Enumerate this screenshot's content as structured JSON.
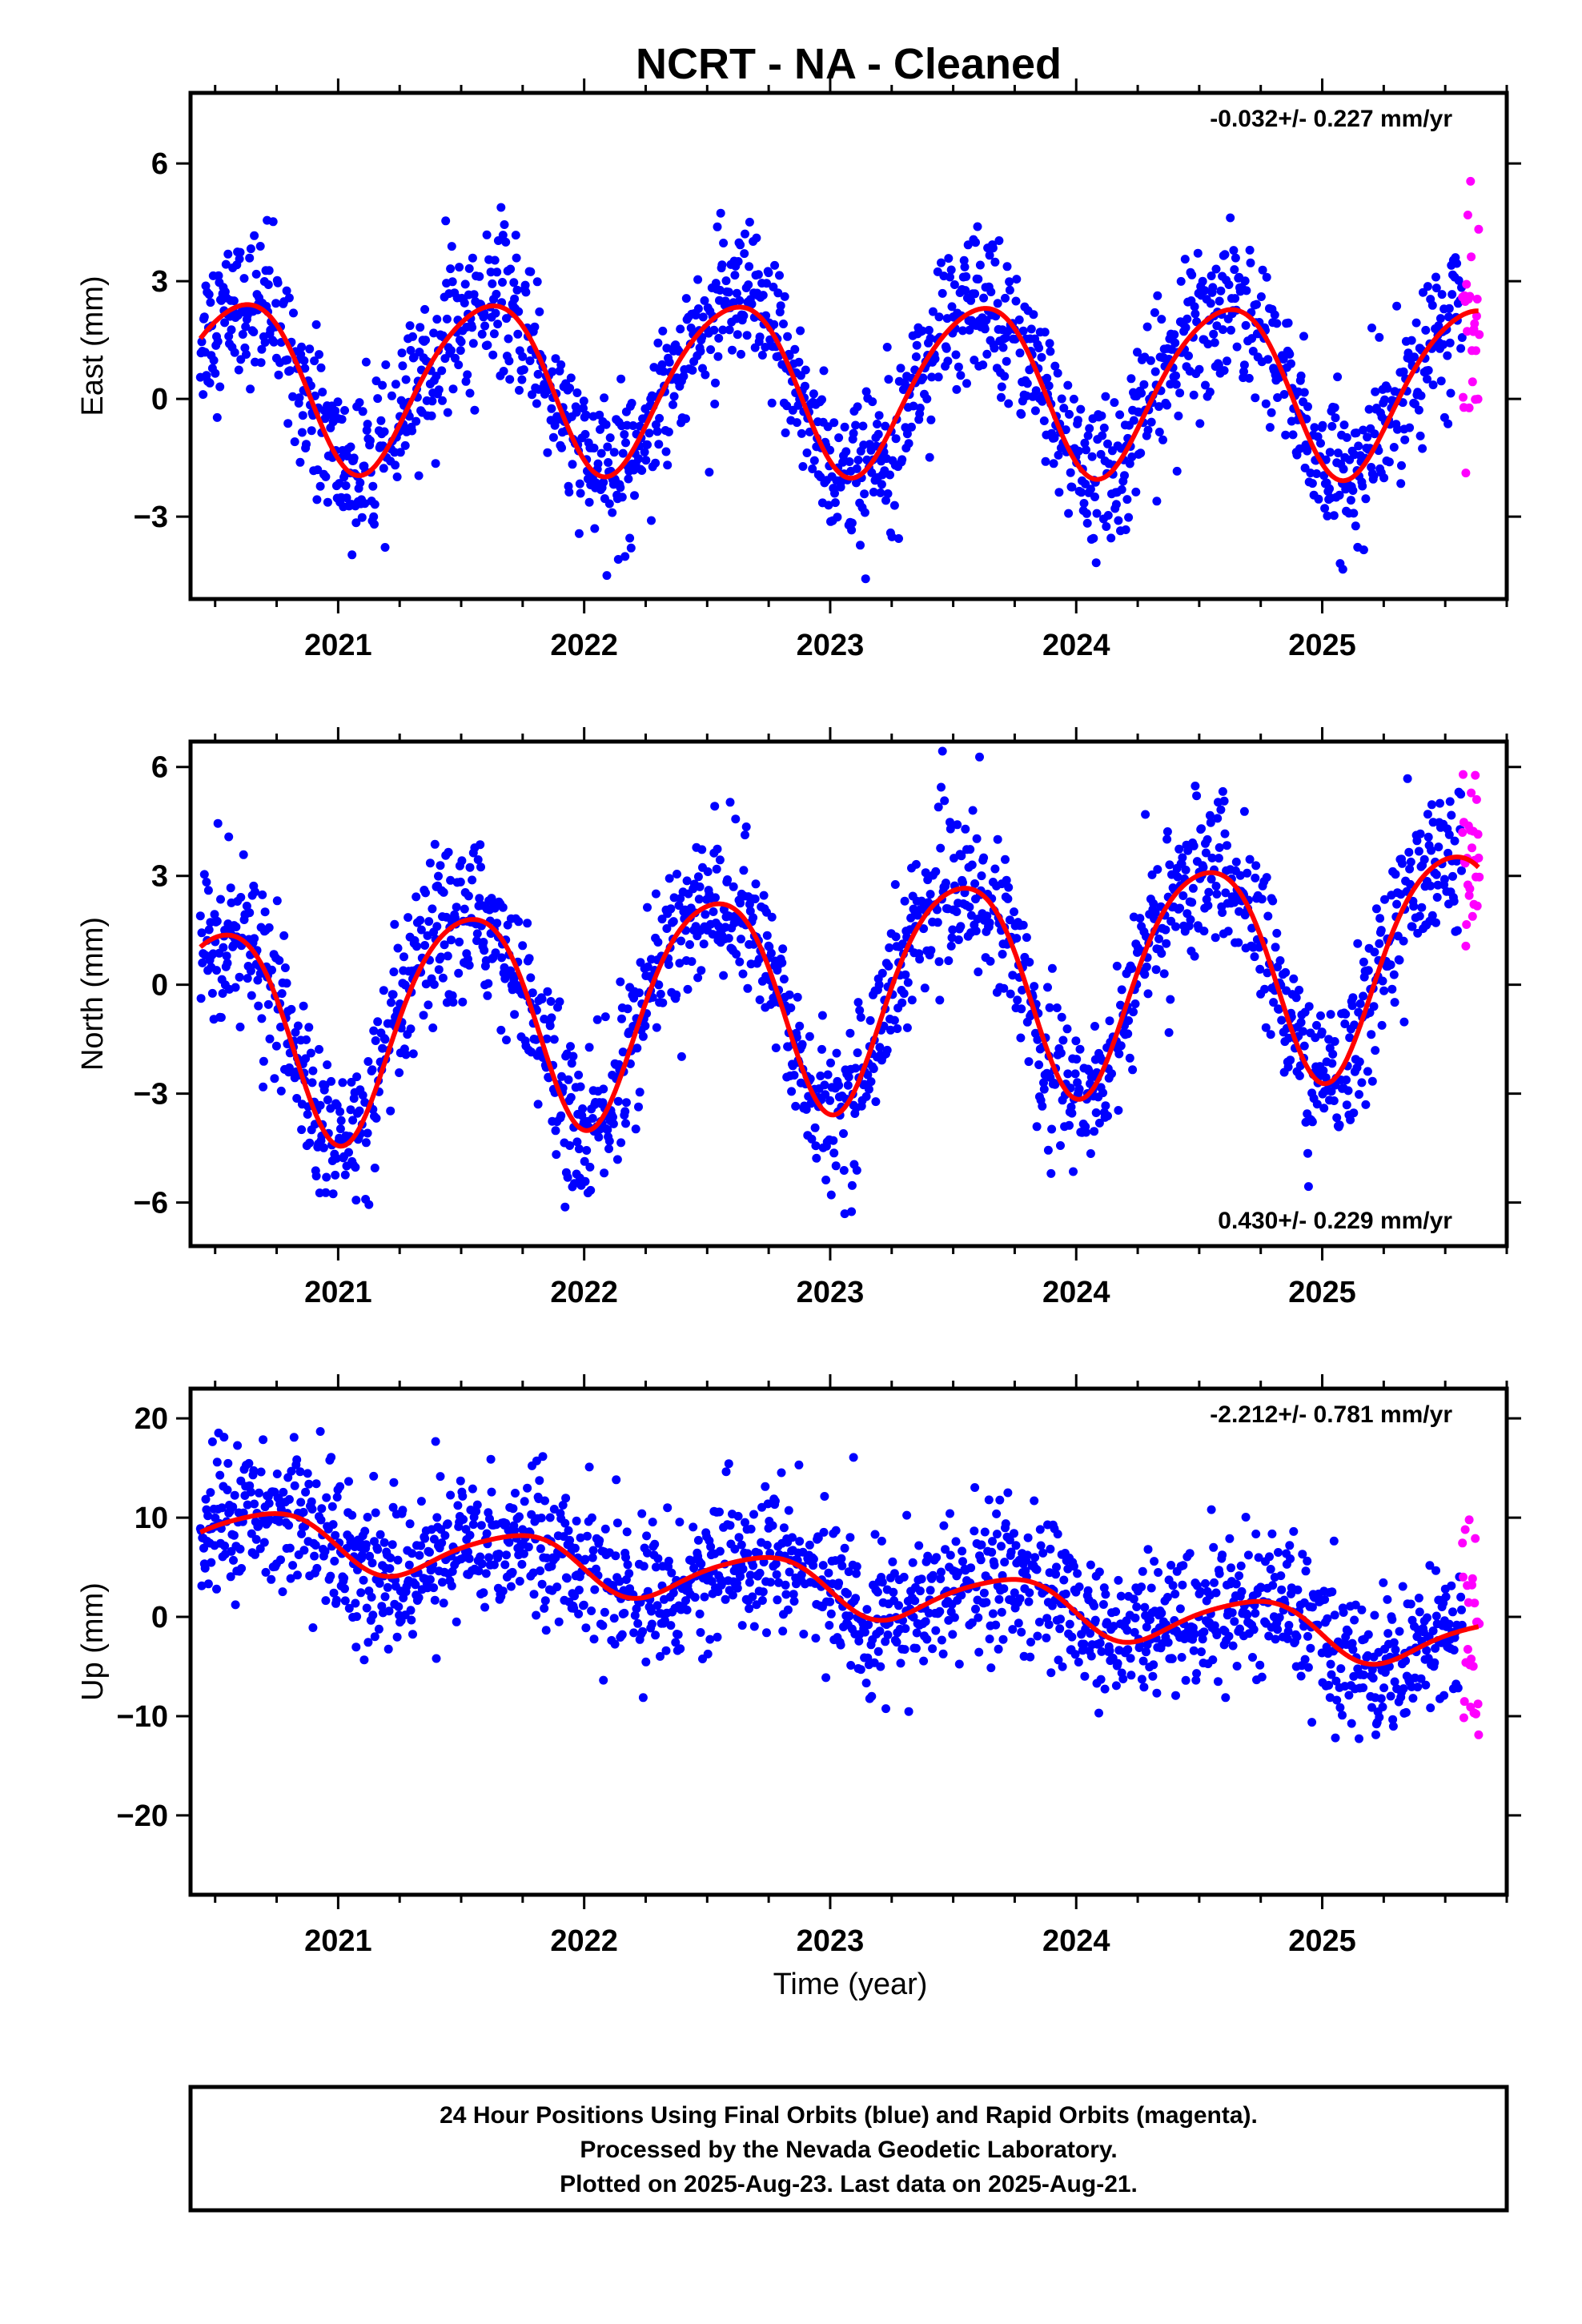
{
  "title": "NCRT  - NA - Cleaned",
  "xlabel": "Time (year)",
  "footer": [
    "24 Hour Positions Using Final Orbits (blue) and Rapid Orbits (magenta).",
    "Processed by the Nevada Geodetic Laboratory.",
    "Plotted on 2025-Aug-23. Last data on 2025-Aug-21."
  ],
  "colors": {
    "final": "#0000ff",
    "rapid": "#ff00ff",
    "model": "#ff0000"
  },
  "chart_data": [
    {
      "type": "scatter",
      "component": "east",
      "ylabel": "East (mm)",
      "rate_text": "-0.032+/- 0.227 mm/yr",
      "rate_position": "top-right",
      "xlim": [
        2020.4,
        2025.75
      ],
      "ylim": [
        -5.1,
        7.8
      ],
      "yticks": [
        -3,
        0,
        3,
        6
      ],
      "xticks": [
        2021,
        2022,
        2023,
        2024,
        2025
      ],
      "model": {
        "offset": 0.35,
        "trend": -0.032,
        "annual_amp": 2.15,
        "annual_peak": 0.6,
        "semi_amp": 0.25,
        "semi_peak": 0.3,
        "scatter_sd": 0.95
      },
      "series": [
        {
          "name": "Final Orbits",
          "color": "#0000ff",
          "x_start": 2020.44,
          "x_end": 2025.57
        },
        {
          "name": "Rapid Orbits",
          "color": "#ff00ff",
          "x_start": 2025.57,
          "x_end": 2025.64
        }
      ]
    },
    {
      "type": "scatter",
      "component": "north",
      "ylabel": "North (mm)",
      "rate_text": "0.430+/- 0.229 mm/yr",
      "rate_position": "bottom-right",
      "xlim": [
        2020.4,
        2025.75
      ],
      "ylim": [
        -7.2,
        6.7
      ],
      "yticks": [
        -6,
        -3,
        0,
        3,
        6
      ],
      "xticks": [
        2021,
        2022,
        2023,
        2024,
        2025
      ],
      "model": {
        "offset": -0.2,
        "trend": 0.43,
        "annual_amp": 3.0,
        "annual_peak": 0.52,
        "semi_amp": 0.4,
        "semi_peak": 0.25,
        "scatter_sd": 1.05
      },
      "series": [
        {
          "name": "Final Orbits",
          "color": "#0000ff",
          "x_start": 2020.44,
          "x_end": 2025.57
        },
        {
          "name": "Rapid Orbits",
          "color": "#ff00ff",
          "x_start": 2025.57,
          "x_end": 2025.64
        }
      ]
    },
    {
      "type": "scatter",
      "component": "up",
      "ylabel": "Up (mm)",
      "rate_text": "-2.212+/- 0.781 mm/yr",
      "rate_position": "top-right",
      "xlim": [
        2020.4,
        2025.75
      ],
      "ylim": [
        -28,
        23
      ],
      "yticks": [
        -20,
        -10,
        0,
        10,
        20
      ],
      "xticks": [
        2021,
        2022,
        2023,
        2024,
        2025
      ],
      "model": {
        "offset": 3.0,
        "trend": -2.212,
        "annual_amp": 2.6,
        "annual_peak": 0.72,
        "semi_amp": 0.4,
        "semi_peak": 0.4,
        "scatter_sd": 3.6
      },
      "series": [
        {
          "name": "Final Orbits",
          "color": "#0000ff",
          "x_start": 2020.44,
          "x_end": 2025.57
        },
        {
          "name": "Rapid Orbits",
          "color": "#ff00ff",
          "x_start": 2025.57,
          "x_end": 2025.64
        }
      ]
    }
  ]
}
